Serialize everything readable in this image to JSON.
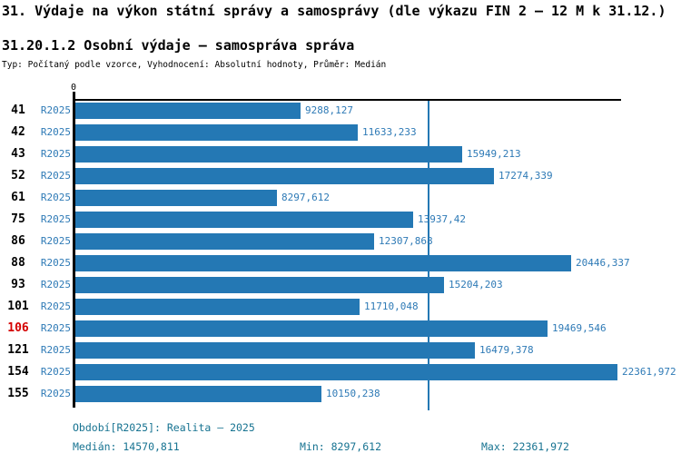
{
  "title": "31. Výdaje na výkon státní správy a samosprávy (dle výkazu FIN 2 – 12 M k 31.12.)",
  "subtitle": "31.20.1.2 Osobní výdaje – samospráva správa",
  "meta_line": "Typ: Počítaný podle vzorce, Vyhodnocení: Absolutní hodnoty, Průměr: Medián",
  "axis": {
    "zero_label": "0"
  },
  "series_label": "R2025",
  "chart_data": {
    "type": "bar",
    "orientation": "horizontal",
    "title": "31.20.1.2 Osobní výdaje – samospráva správa",
    "categories": [
      "41",
      "42",
      "43",
      "52",
      "61",
      "75",
      "86",
      "88",
      "93",
      "101",
      "106",
      "121",
      "154",
      "155"
    ],
    "highlighted_category": "106",
    "series": [
      {
        "name": "R2025",
        "values": [
          9288.127,
          11633.233,
          15949.213,
          17274.339,
          8297.612,
          13937.42,
          12307.868,
          20446.337,
          15204.203,
          11710.048,
          19469.546,
          16479.378,
          22361.972,
          10150.238
        ]
      }
    ],
    "value_labels": [
      "9288,127",
      "11633,233",
      "15949,213",
      "17274,339",
      "8297,612",
      "13937,42",
      "12307,868",
      "20446,337",
      "15204,203",
      "11710,048",
      "19469,546",
      "16479,378",
      "22361,972",
      "10150,238"
    ],
    "xlim": [
      0,
      22361.972
    ],
    "grid": false,
    "legend_position": "none",
    "median": 14570.811,
    "min": 8297.612,
    "max": 22361.972
  },
  "footer": {
    "period": "Období[R2025]: Realita – 2025",
    "median": "Medián: 14570,811",
    "min": "Min: 8297,612",
    "max": "Max: 22361,972"
  },
  "colors": {
    "bar": "#2478B4",
    "label": "#2E7AB6",
    "median_line": "#2478B4",
    "stats": "#177391",
    "highlight": "#D40000"
  }
}
